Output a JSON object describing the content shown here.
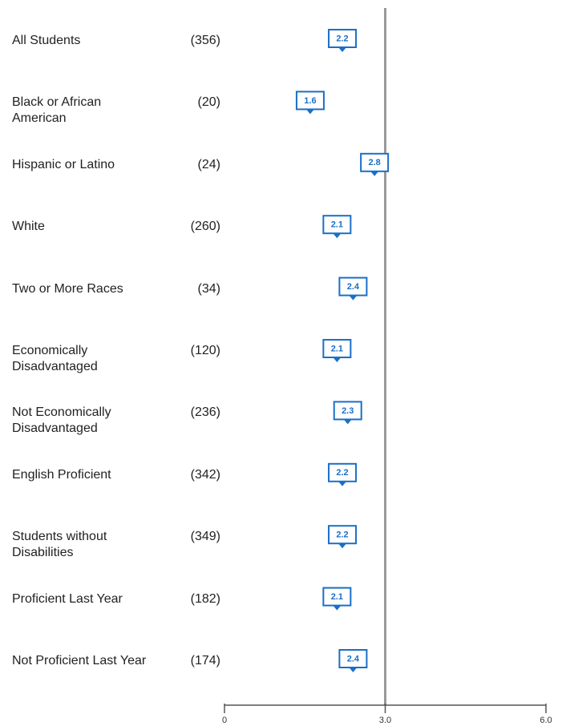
{
  "chart_data": {
    "type": "marker",
    "categories": [
      "All Students",
      "Black or African American",
      "Hispanic or Latino",
      "White",
      "Two or More Races",
      "Economically Disadvantaged",
      "Not Economically Disadvantaged",
      "English Proficient",
      "Students without Disabilities",
      "Proficient Last Year",
      "Not Proficient Last Year"
    ],
    "counts": [
      "(356)",
      "(20)",
      "(24)",
      "(260)",
      "(34)",
      "(120)",
      "(236)",
      "(342)",
      "(349)",
      "(182)",
      "(174)"
    ],
    "values": [
      2.2,
      1.6,
      2.8,
      2.1,
      2.4,
      2.1,
      2.3,
      2.2,
      2.2,
      2.1,
      2.4
    ],
    "color": "#1a6fc9",
    "xlim": [
      0,
      6
    ],
    "xticks": [
      0,
      {
        "value": 3,
        "label": "3.0"
      },
      {
        "value": 6,
        "label": "6.0"
      }
    ],
    "reference_line": 3
  }
}
